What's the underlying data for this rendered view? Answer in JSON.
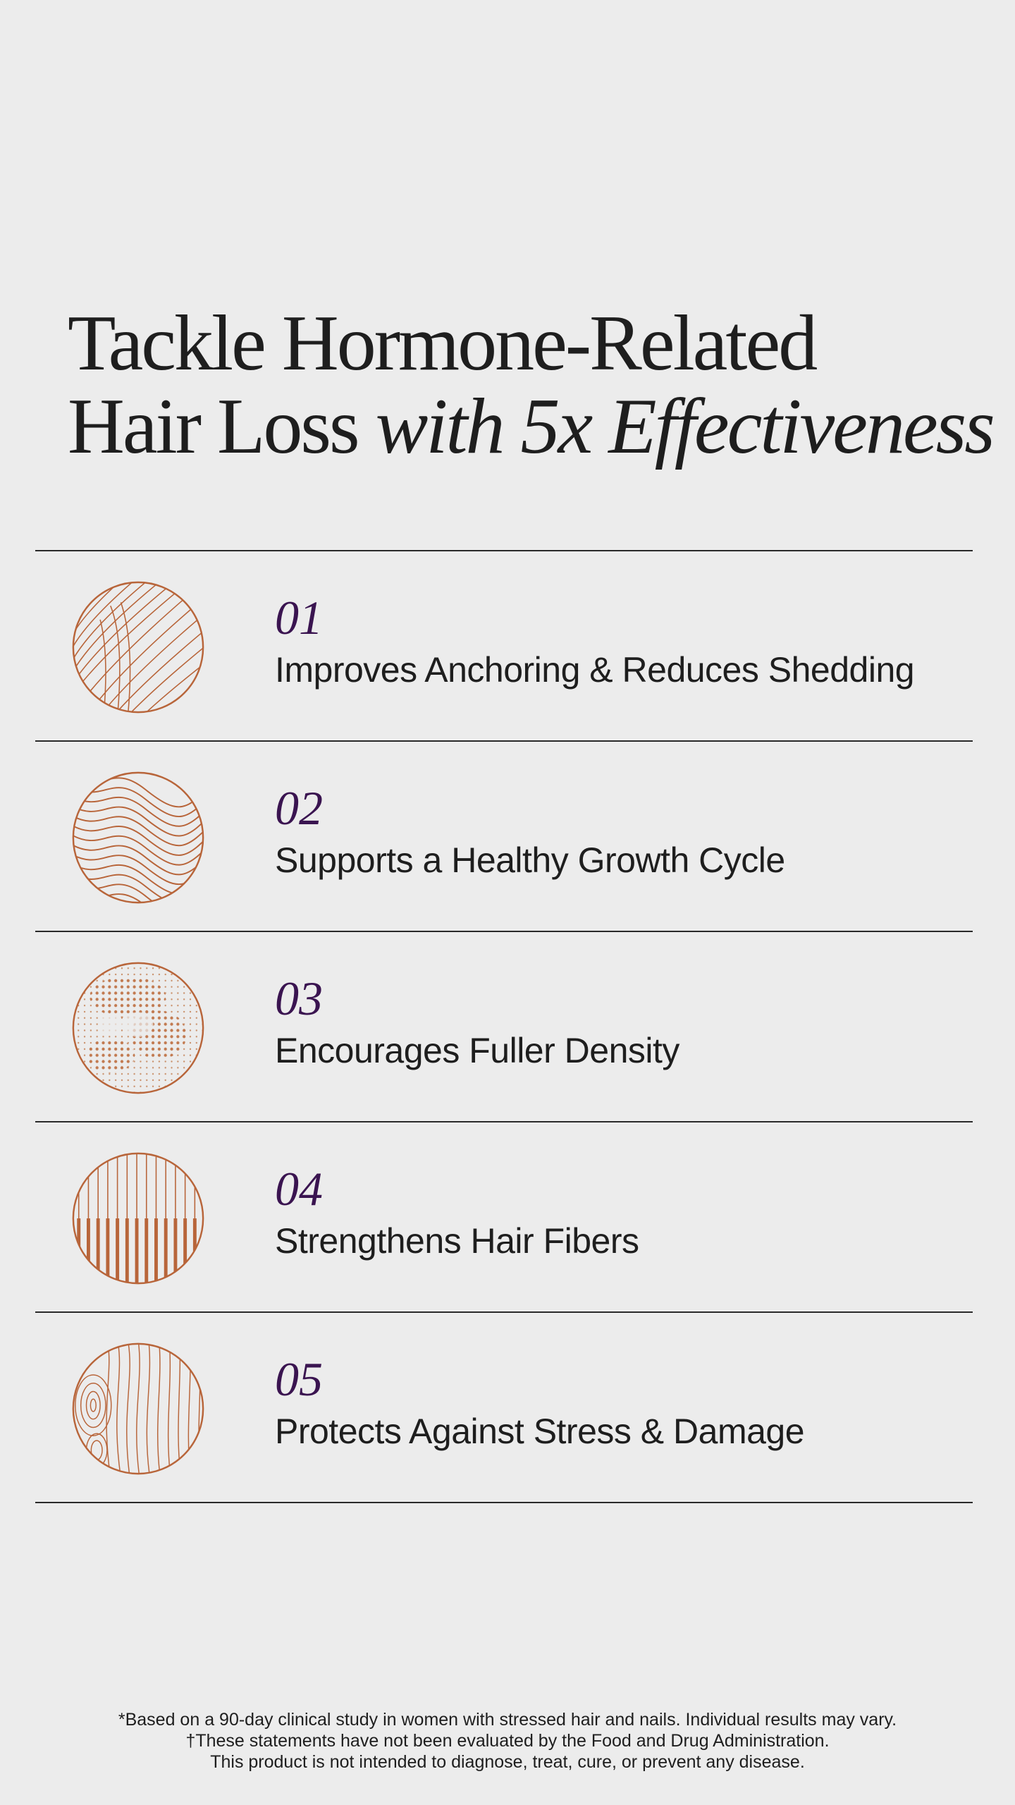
{
  "headline": {
    "line1": "Tackle Hormone-Related",
    "line2_plain": "Hair Loss",
    "line2_italic": "with 5x Effectiveness"
  },
  "benefits": [
    {
      "number": "01",
      "label": "Improves Anchoring & Reduces Shedding",
      "icon": "leaf-lines-icon"
    },
    {
      "number": "02",
      "label": "Supports a Healthy Growth Cycle",
      "icon": "wave-lines-icon"
    },
    {
      "number": "03",
      "label": "Encourages Fuller Density",
      "icon": "dot-pattern-icon"
    },
    {
      "number": "04",
      "label": "Strengthens Hair Fibers",
      "icon": "vertical-fibers-icon"
    },
    {
      "number": "05",
      "label": "Protects Against Stress & Damage",
      "icon": "wood-grain-icon"
    }
  ],
  "disclaimer": {
    "line1": "*Based on a 90-day clinical study in women with stressed hair and nails. Individual results may vary.",
    "line2": "†These statements have not been evaluated by the Food and Drug Administration.",
    "line3": "This product is not intended to diagnose, treat, cure, or prevent any disease."
  },
  "colors": {
    "background": "#ececec",
    "text": "#1e1e1e",
    "number_accent": "#3a1450",
    "icon_copper": "#b8653a"
  }
}
